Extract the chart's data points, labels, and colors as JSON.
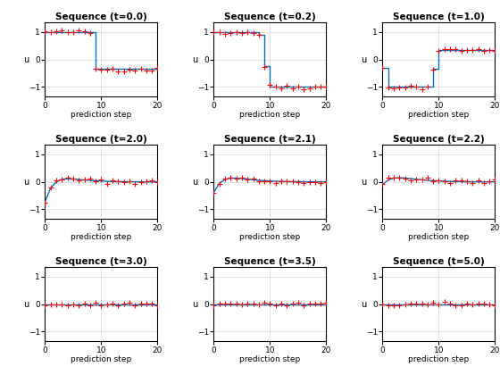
{
  "titles": [
    "Sequence (t=0.0)",
    "Sequence (t=0.2)",
    "Sequence (t=1.0)",
    "Sequence (t=2.0)",
    "Sequence (t=2.1)",
    "Sequence (t=2.2)",
    "Sequence (t=3.0)",
    "Sequence (t=3.5)",
    "Sequence (t=5.0)"
  ],
  "xlabel": "prediction step",
  "ylabel": "u",
  "xlim": [
    0,
    20
  ],
  "ylim": [
    -1.35,
    1.35
  ],
  "yticks": [
    -1,
    0,
    1
  ],
  "xticks": [
    0,
    10,
    20
  ],
  "noise_std": 0.04,
  "seed": 42,
  "n_steps": 21,
  "blue_color": "#0070C0",
  "red_color": "#FF0000",
  "grid_color": "#D0D0D0",
  "bg_color": "#FFFFFF"
}
